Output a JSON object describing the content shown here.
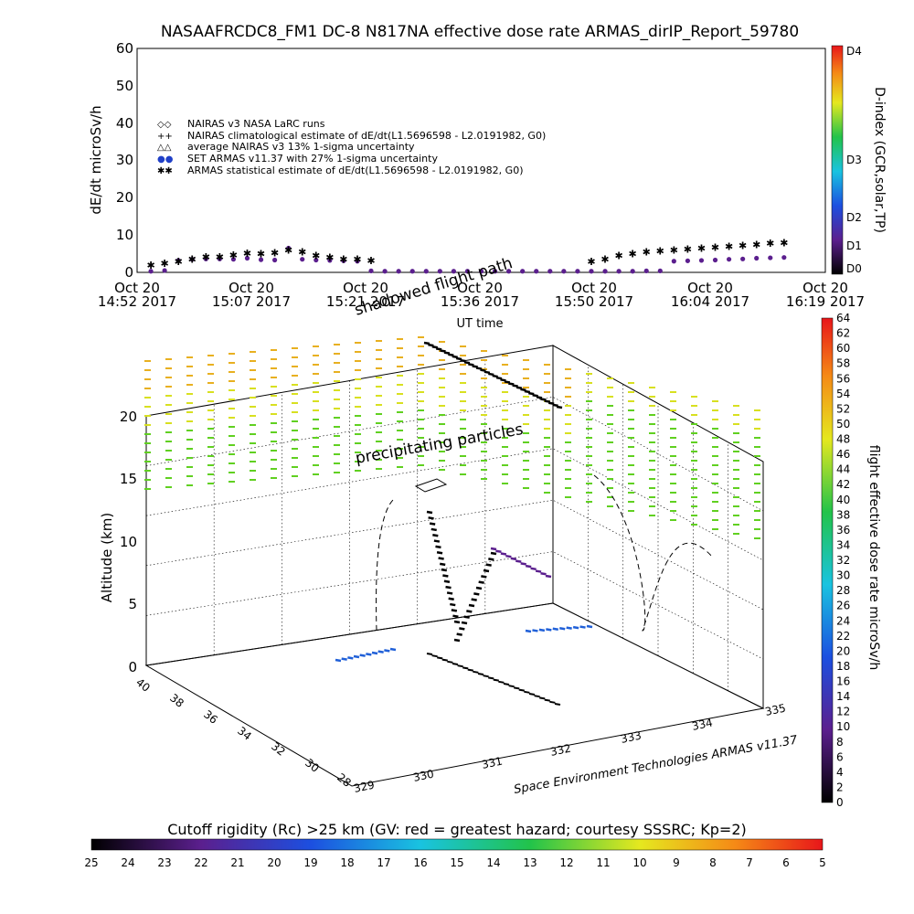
{
  "title": "NASAAFRCDC8_FM1 DC-8    N817NA effective dose rate ARMAS_dirIP_Report_59780",
  "colors": {
    "black": "#000000",
    "purple": "#5b1f8e",
    "blue": "#2060d8",
    "gray": "#888888"
  },
  "chart_data": [
    {
      "type": "scatter",
      "ylabel": "dE/dt microSv/h",
      "xlabel": "UT time",
      "ylim": [
        0,
        60
      ],
      "yticks": [
        "0",
        "10",
        "20",
        "30",
        "40",
        "50",
        "60"
      ],
      "xticks": [
        {
          "top": "Oct 20",
          "bottom": "14:52 2017"
        },
        {
          "top": "Oct 20",
          "bottom": "15:07 2017"
        },
        {
          "top": "Oct 20",
          "bottom": "15:21 2017"
        },
        {
          "top": "Oct 20",
          "bottom": "15:36 2017"
        },
        {
          "top": "Oct 20",
          "bottom": "15:50 2017"
        },
        {
          "top": "Oct 20",
          "bottom": "16:04 2017"
        },
        {
          "top": "Oct 20",
          "bottom": "16:19 2017"
        }
      ],
      "legend_position": "upper-left",
      "legend": [
        {
          "symbol": "◇◇",
          "label": "NAIRAS v3 NASA LaRC runs"
        },
        {
          "symbol": "++",
          "label": "NAIRAS climatological estimate of dE/dt(L1.5696598 - L2.0191982, G0)"
        },
        {
          "symbol": "△△",
          "label": "average NAIRAS v3 13% 1-sigma uncertainty"
        },
        {
          "symbol": "●●",
          "label": "SET ARMAS v11.37 with 27% 1-sigma uncertainty"
        },
        {
          "symbol": "✱✱",
          "label": "ARMAS statistical estimate of dE/dt(L1.5696598 - L2.0191982, G0)"
        }
      ],
      "series": [
        {
          "name": "SET ARMAS v11.37 with 27% 1-sigma uncertainty",
          "x": [
            2,
            4,
            6,
            8,
            10,
            12,
            14,
            16,
            18,
            20,
            22,
            24,
            26,
            28,
            30,
            32,
            34,
            36,
            38,
            40,
            42,
            44,
            46,
            48,
            50,
            52,
            54,
            56,
            58,
            60,
            62,
            64,
            66,
            68,
            70,
            72,
            74,
            76,
            78,
            80,
            82,
            84,
            86,
            88,
            90,
            92,
            94
          ],
          "y": [
            0.3,
            0.5,
            3.2,
            3.5,
            3.6,
            3.6,
            3.5,
            3.8,
            3.4,
            3.3,
            6.5,
            3.5,
            3.3,
            3.2,
            3.1,
            3.0,
            0.4,
            0.3,
            0.3,
            0.3,
            0.3,
            0.3,
            0.3,
            0.3,
            0.3,
            0.3,
            0.3,
            0.3,
            0.3,
            0.3,
            0.3,
            0.3,
            0.3,
            0.3,
            0.3,
            0.3,
            0.4,
            0.4,
            3.0,
            3.1,
            3.2,
            3.3,
            3.5,
            3.6,
            3.8,
            3.9,
            4.0
          ]
        },
        {
          "name": "ARMAS statistical estimate of dE/dt(L1.5696598 - L2.0191982, G0)",
          "x": [
            2,
            4,
            6,
            8,
            10,
            12,
            14,
            16,
            18,
            20,
            22,
            24,
            26,
            28,
            30,
            32,
            34,
            66,
            68,
            70,
            72,
            74,
            76,
            78,
            80,
            82,
            84,
            86,
            88,
            90,
            92,
            94
          ],
          "y": [
            2.0,
            2.5,
            3.0,
            3.5,
            4.2,
            4.2,
            4.6,
            5.2,
            5.0,
            5.3,
            6.0,
            5.5,
            4.5,
            4.0,
            3.6,
            3.5,
            3.2,
            3.0,
            3.6,
            4.5,
            5.0,
            5.5,
            5.8,
            6.0,
            6.3,
            6.5,
            6.7,
            7.0,
            7.2,
            7.5,
            7.8,
            8.0
          ]
        }
      ],
      "colorbar": {
        "label": "D-index (GCR,solar,TP)",
        "ticks": [
          "D0",
          "D1",
          "D2",
          "D3",
          "D4"
        ]
      }
    },
    {
      "type": "scatter",
      "ylabel": "Altitude (km)",
      "zticks": [
        "0",
        "5",
        "10",
        "15",
        "20"
      ],
      "lat_ticks": [
        "40",
        "38",
        "36",
        "34",
        "32",
        "30",
        "28"
      ],
      "lon_ticks": [
        "329",
        "330",
        "331",
        "332",
        "333",
        "334",
        "335"
      ],
      "annotations": [
        "shadowed flight path",
        "precipitating particles"
      ],
      "credit": "Space Environment Technologies ARMAS v11.37",
      "colorbar": {
        "label": "flight effective dose rate microSv/h",
        "ticks": [
          "0",
          "2",
          "4",
          "6",
          "8",
          "10",
          "12",
          "14",
          "16",
          "18",
          "20",
          "22",
          "24",
          "26",
          "28",
          "30",
          "32",
          "34",
          "36",
          "38",
          "40",
          "42",
          "44",
          "46",
          "48",
          "50",
          "52",
          "54",
          "56",
          "58",
          "60",
          "62",
          "64"
        ]
      }
    },
    {
      "type": "heatmap",
      "title": "Cutoff rigidity (Rc) >25 km (GV: red = greatest hazard; courtesy SSSRC; Kp=2)",
      "ticks": [
        "25",
        "24",
        "23",
        "22",
        "21",
        "20",
        "19",
        "18",
        "17",
        "16",
        "15",
        "14",
        "13",
        "12",
        "11",
        "10",
        "9",
        "8",
        "7",
        "6",
        "5"
      ]
    }
  ]
}
